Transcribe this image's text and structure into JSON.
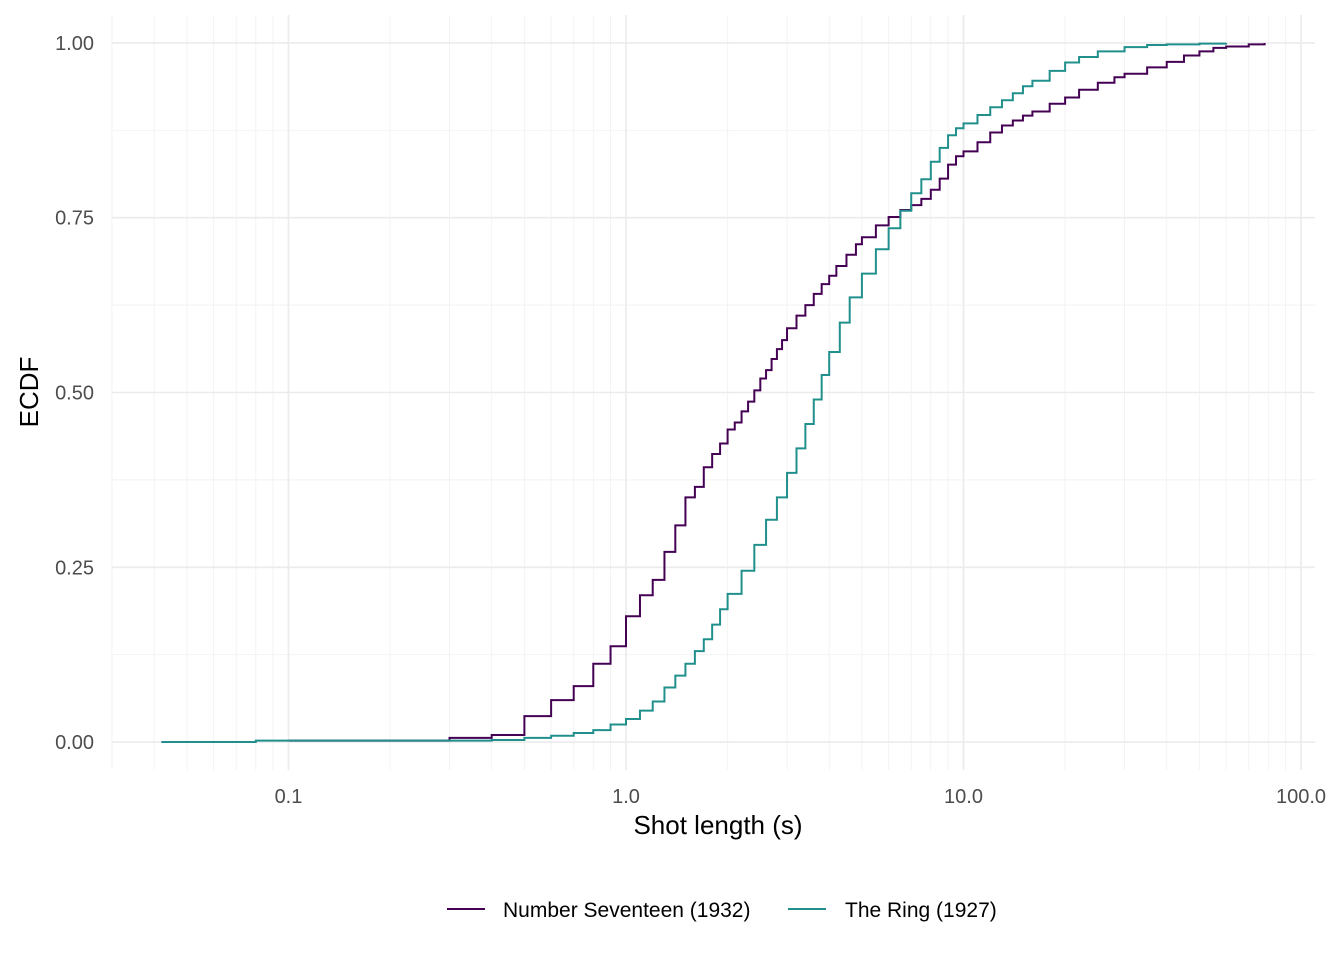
{
  "chart_data": {
    "type": "line",
    "subtype": "step-ecdf",
    "xlabel": "Shot length (s)",
    "ylabel": "ECDF",
    "x_scale": "log10",
    "xlim": [
      0.03,
      110
    ],
    "ylim": [
      -0.04,
      1.04
    ],
    "x_ticks": [
      0.1,
      1,
      10,
      100
    ],
    "x_tick_labels": [
      "0.1",
      "1.0",
      "10.0",
      "100.0"
    ],
    "y_ticks": [
      0,
      0.25,
      0.5,
      0.75,
      1
    ],
    "y_tick_labels": [
      "0.00",
      "0.25",
      "0.50",
      "0.75",
      "1.00"
    ],
    "grid": true,
    "legend_position": "bottom",
    "series": [
      {
        "name": "Number Seventeen (1932)",
        "color": "#440154",
        "points": [
          [
            0.1,
            0.002
          ],
          [
            0.3,
            0.006
          ],
          [
            0.4,
            0.01
          ],
          [
            0.5,
            0.037
          ],
          [
            0.6,
            0.06
          ],
          [
            0.7,
            0.08
          ],
          [
            0.8,
            0.112
          ],
          [
            0.9,
            0.137
          ],
          [
            1.0,
            0.18
          ],
          [
            1.1,
            0.21
          ],
          [
            1.2,
            0.232
          ],
          [
            1.3,
            0.272
          ],
          [
            1.4,
            0.31
          ],
          [
            1.5,
            0.35
          ],
          [
            1.6,
            0.365
          ],
          [
            1.7,
            0.393
          ],
          [
            1.8,
            0.412
          ],
          [
            1.9,
            0.427
          ],
          [
            2.0,
            0.447
          ],
          [
            2.1,
            0.457
          ],
          [
            2.2,
            0.473
          ],
          [
            2.3,
            0.487
          ],
          [
            2.4,
            0.503
          ],
          [
            2.5,
            0.52
          ],
          [
            2.6,
            0.532
          ],
          [
            2.7,
            0.548
          ],
          [
            2.8,
            0.562
          ],
          [
            2.9,
            0.575
          ],
          [
            3.0,
            0.592
          ],
          [
            3.2,
            0.61
          ],
          [
            3.4,
            0.625
          ],
          [
            3.6,
            0.641
          ],
          [
            3.8,
            0.655
          ],
          [
            4.0,
            0.667
          ],
          [
            4.2,
            0.681
          ],
          [
            4.5,
            0.697
          ],
          [
            4.8,
            0.712
          ],
          [
            5.0,
            0.722
          ],
          [
            5.5,
            0.739
          ],
          [
            6.0,
            0.751
          ],
          [
            6.5,
            0.761
          ],
          [
            7.0,
            0.768
          ],
          [
            7.5,
            0.777
          ],
          [
            8.0,
            0.79
          ],
          [
            8.5,
            0.806
          ],
          [
            9.0,
            0.826
          ],
          [
            9.5,
            0.838
          ],
          [
            10.0,
            0.845
          ],
          [
            11.0,
            0.858
          ],
          [
            12.0,
            0.872
          ],
          [
            13.0,
            0.882
          ],
          [
            14.0,
            0.889
          ],
          [
            15.0,
            0.896
          ],
          [
            16.0,
            0.902
          ],
          [
            18.0,
            0.913
          ],
          [
            20.0,
            0.922
          ],
          [
            22.0,
            0.933
          ],
          [
            25.0,
            0.943
          ],
          [
            28.0,
            0.951
          ],
          [
            30.0,
            0.956
          ],
          [
            35.0,
            0.965
          ],
          [
            40.0,
            0.973
          ],
          [
            45.0,
            0.982
          ],
          [
            50.0,
            0.988
          ],
          [
            55.0,
            0.993
          ],
          [
            60.0,
            0.995
          ],
          [
            70.0,
            0.998
          ],
          [
            78.0,
            1.0
          ]
        ]
      },
      {
        "name": "The Ring (1927)",
        "color": "#21908c",
        "points": [
          [
            0.042,
            0.0
          ],
          [
            0.08,
            0.002
          ],
          [
            0.4,
            0.003
          ],
          [
            0.5,
            0.006
          ],
          [
            0.6,
            0.009
          ],
          [
            0.7,
            0.013
          ],
          [
            0.8,
            0.017
          ],
          [
            0.9,
            0.025
          ],
          [
            1.0,
            0.033
          ],
          [
            1.1,
            0.045
          ],
          [
            1.2,
            0.058
          ],
          [
            1.3,
            0.078
          ],
          [
            1.4,
            0.095
          ],
          [
            1.5,
            0.112
          ],
          [
            1.6,
            0.13
          ],
          [
            1.7,
            0.147
          ],
          [
            1.8,
            0.168
          ],
          [
            1.9,
            0.19
          ],
          [
            2.0,
            0.212
          ],
          [
            2.2,
            0.245
          ],
          [
            2.4,
            0.282
          ],
          [
            2.6,
            0.318
          ],
          [
            2.8,
            0.35
          ],
          [
            3.0,
            0.385
          ],
          [
            3.2,
            0.42
          ],
          [
            3.4,
            0.455
          ],
          [
            3.6,
            0.49
          ],
          [
            3.8,
            0.525
          ],
          [
            4.0,
            0.558
          ],
          [
            4.3,
            0.6
          ],
          [
            4.6,
            0.636
          ],
          [
            5.0,
            0.67
          ],
          [
            5.5,
            0.705
          ],
          [
            6.0,
            0.735
          ],
          [
            6.5,
            0.76
          ],
          [
            7.0,
            0.785
          ],
          [
            7.5,
            0.805
          ],
          [
            8.0,
            0.83
          ],
          [
            8.5,
            0.85
          ],
          [
            9.0,
            0.868
          ],
          [
            9.5,
            0.878
          ],
          [
            10.0,
            0.885
          ],
          [
            11.0,
            0.897
          ],
          [
            12.0,
            0.908
          ],
          [
            13.0,
            0.918
          ],
          [
            14.0,
            0.928
          ],
          [
            15.0,
            0.938
          ],
          [
            16.0,
            0.946
          ],
          [
            18.0,
            0.96
          ],
          [
            20.0,
            0.972
          ],
          [
            22.0,
            0.98
          ],
          [
            25.0,
            0.988
          ],
          [
            30.0,
            0.994
          ],
          [
            35.0,
            0.997
          ],
          [
            40.0,
            0.998
          ],
          [
            50.0,
            0.999
          ],
          [
            60.0,
            1.0
          ]
        ]
      }
    ]
  }
}
